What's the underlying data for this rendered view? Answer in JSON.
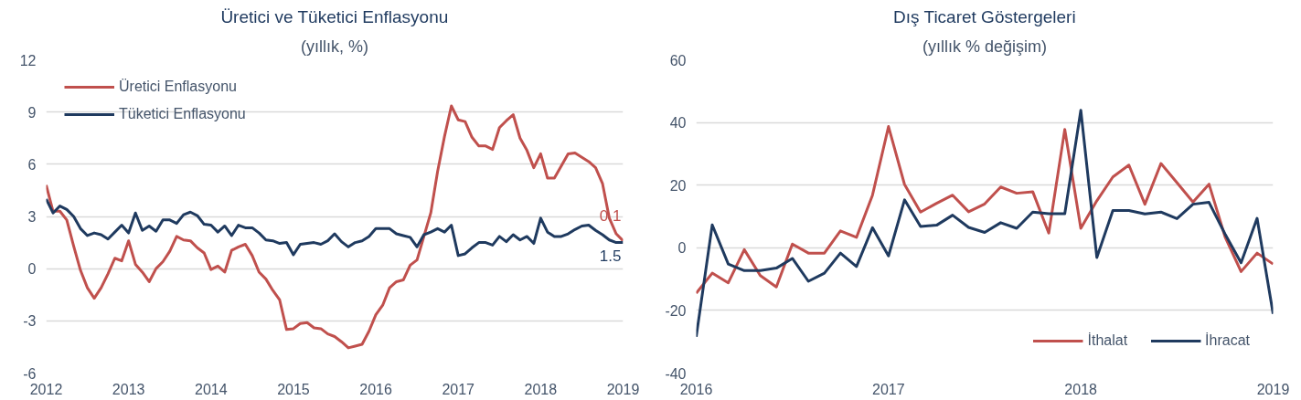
{
  "chart_data": [
    {
      "type": "line",
      "title": "Üretici ve Tüketici Enflasyonu",
      "subtitle": "(yıllık, %)",
      "x": [
        "2012-01",
        "2012-02",
        "2012-03",
        "2012-04",
        "2012-05",
        "2012-06",
        "2012-07",
        "2012-08",
        "2012-09",
        "2012-10",
        "2012-11",
        "2012-12",
        "2013-01",
        "2013-02",
        "2013-03",
        "2013-04",
        "2013-05",
        "2013-06",
        "2013-07",
        "2013-08",
        "2013-09",
        "2013-10",
        "2013-11",
        "2013-12",
        "2014-01",
        "2014-02",
        "2014-03",
        "2014-04",
        "2014-05",
        "2014-06",
        "2014-07",
        "2014-08",
        "2014-09",
        "2014-10",
        "2014-11",
        "2014-12",
        "2015-01",
        "2015-02",
        "2015-03",
        "2015-04",
        "2015-05",
        "2015-06",
        "2015-07",
        "2015-08",
        "2015-09",
        "2015-10",
        "2015-11",
        "2015-12",
        "2016-01",
        "2016-02",
        "2016-03",
        "2016-04",
        "2016-05",
        "2016-06",
        "2016-07",
        "2016-08",
        "2016-09",
        "2016-10",
        "2016-11",
        "2016-12",
        "2017-01",
        "2017-02",
        "2017-03",
        "2017-04",
        "2017-05",
        "2017-06",
        "2017-07",
        "2017-08",
        "2017-09",
        "2017-10",
        "2017-11",
        "2017-12",
        "2018-01",
        "2018-02",
        "2018-03",
        "2018-04",
        "2018-05",
        "2018-06",
        "2018-07",
        "2018-08",
        "2018-09",
        "2018-10",
        "2018-11",
        "2018-12",
        "2019-01"
      ],
      "series": [
        {
          "name": "Üretici Enflasyonu",
          "color": "#c0504d",
          "values": [
            4.8,
            3.3,
            3.3,
            2.8,
            1.3,
            -0.1,
            -1.1,
            -1.7,
            -1.1,
            -0.3,
            0.6,
            0.45,
            1.6,
            0.25,
            -0.2,
            -0.75,
            0.0,
            0.4,
            1.0,
            1.85,
            1.65,
            1.6,
            1.2,
            0.9,
            -0.05,
            0.15,
            -0.2,
            1.05,
            1.25,
            1.4,
            0.75,
            -0.2,
            -0.6,
            -1.25,
            -1.8,
            -3.5,
            -3.45,
            -3.15,
            -3.1,
            -3.4,
            -3.45,
            -3.75,
            -3.9,
            -4.2,
            -4.55,
            -4.45,
            -4.35,
            -3.6,
            -2.65,
            -2.1,
            -1.1,
            -0.75,
            -0.65,
            0.2,
            0.5,
            1.85,
            3.2,
            5.6,
            7.6,
            9.35,
            8.55,
            8.45,
            7.55,
            7.05,
            7.05,
            6.85,
            8.1,
            8.5,
            8.85,
            7.5,
            6.8,
            5.8,
            6.6,
            5.2,
            5.2,
            5.9,
            6.6,
            6.65,
            6.4,
            6.15,
            5.8,
            4.9,
            2.9,
            2.0,
            1.6
          ]
        },
        {
          "name": "Tüketici Enflasyonu",
          "color": "#1f3a5f",
          "values": [
            4.0,
            3.2,
            3.6,
            3.4,
            3.0,
            2.3,
            1.9,
            2.05,
            1.95,
            1.7,
            2.1,
            2.5,
            2.05,
            3.2,
            2.2,
            2.45,
            2.15,
            2.8,
            2.8,
            2.6,
            3.1,
            3.25,
            3.05,
            2.55,
            2.5,
            2.1,
            2.45,
            1.9,
            2.5,
            2.35,
            2.35,
            2.05,
            1.65,
            1.6,
            1.45,
            1.5,
            0.8,
            1.4,
            1.45,
            1.5,
            1.4,
            1.6,
            2.0,
            1.55,
            1.25,
            1.5,
            1.6,
            1.85,
            2.3,
            2.3,
            2.3,
            2.0,
            1.9,
            1.8,
            1.25,
            1.95,
            2.1,
            2.3,
            2.1,
            2.5,
            0.75,
            0.85,
            1.2,
            1.5,
            1.5,
            1.35,
            1.85,
            1.55,
            1.95,
            1.65,
            1.85,
            1.45,
            2.9,
            2.1,
            1.85,
            1.85,
            2.0,
            2.25,
            2.45,
            2.5,
            2.2,
            1.95,
            1.65,
            1.5,
            1.5
          ]
        }
      ],
      "xlim": [
        "2012-01",
        "2019-01"
      ],
      "xticks": [
        "2012",
        "2013",
        "2014",
        "2015",
        "2016",
        "2017",
        "2018",
        "2019"
      ],
      "ylim": [
        -6,
        12
      ],
      "yticks": [
        -6,
        -3,
        0,
        3,
        6,
        9,
        12
      ],
      "grid": "y",
      "legend": "top left",
      "line_style": "solid",
      "annotations": [
        "0.1",
        "1.5"
      ]
    },
    {
      "type": "line",
      "title": "Dış Ticaret Göstergeleri",
      "subtitle": "(yıllık % değişim)",
      "x": [
        "2016-01",
        "2016-02",
        "2016-03",
        "2016-04",
        "2016-05",
        "2016-06",
        "2016-07",
        "2016-08",
        "2016-09",
        "2016-10",
        "2016-11",
        "2016-12",
        "2017-01",
        "2017-02",
        "2017-03",
        "2017-04",
        "2017-05",
        "2017-06",
        "2017-07",
        "2017-08",
        "2017-09",
        "2017-10",
        "2017-11",
        "2017-12",
        "2018-01",
        "2018-02",
        "2018-03",
        "2018-04",
        "2018-05",
        "2018-06",
        "2018-07",
        "2018-08",
        "2018-09",
        "2018-10",
        "2018-11",
        "2018-12",
        "2019-01"
      ],
      "series": [
        {
          "name": "İthalat",
          "color": "#c0504d",
          "values": [
            -14.5,
            -8.1,
            -11.2,
            -0.6,
            -8.9,
            -12.5,
            1.2,
            -1.7,
            -1.7,
            5.4,
            3.3,
            16.8,
            38.7,
            20.2,
            11.4,
            14.2,
            16.8,
            11.5,
            14.0,
            19.4,
            17.4,
            17.9,
            4.7,
            37.8,
            6.2,
            15.0,
            22.6,
            26.4,
            13.9,
            26.9,
            20.8,
            14.6,
            20.3,
            3.5,
            -7.6,
            -1.7,
            -5.2
          ]
        },
        {
          "name": "İhracat",
          "color": "#1f3a5f",
          "values": [
            -28.4,
            7.3,
            -5.2,
            -7.3,
            -7.3,
            -6.5,
            -3.4,
            -10.7,
            -8.1,
            -1.7,
            -6.0,
            6.4,
            -2.6,
            15.3,
            6.8,
            7.2,
            10.4,
            6.5,
            4.9,
            8.0,
            6.2,
            11.4,
            10.9,
            10.9,
            43.9,
            -3.1,
            11.9,
            11.9,
            10.8,
            11.4,
            9.3,
            13.9,
            14.5,
            4.4,
            -4.8,
            9.4,
            -21.1
          ]
        }
      ],
      "xlim": [
        "2016-01",
        "2019-01"
      ],
      "xticks": [
        "2016",
        "2017",
        "2018",
        "2019"
      ],
      "ylim": [
        -40,
        60
      ],
      "yticks": [
        -40,
        -20,
        0,
        20,
        40,
        60
      ],
      "grid": "y",
      "legend": "bottom right",
      "line_style": "solid"
    }
  ]
}
